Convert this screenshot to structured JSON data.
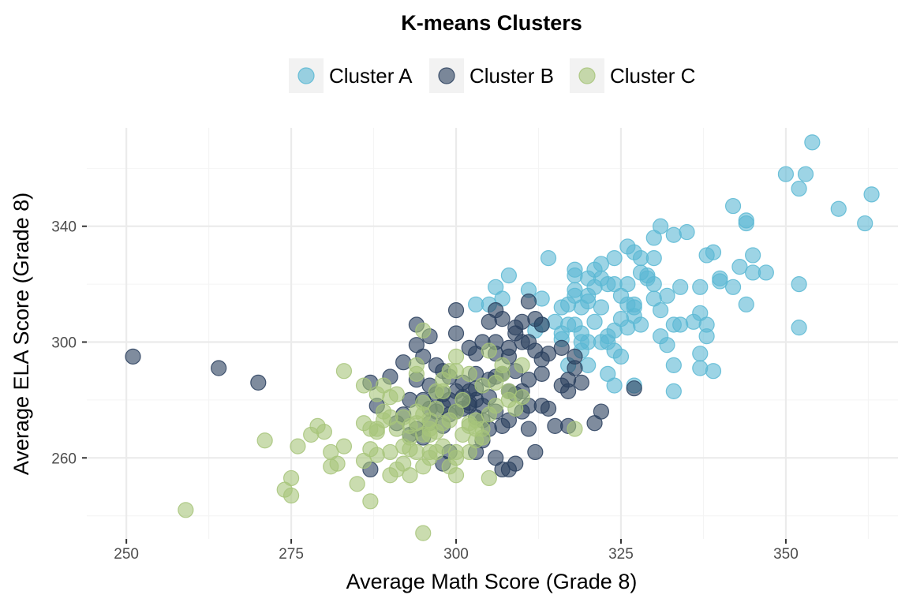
{
  "chart_data": {
    "type": "scatter",
    "title": "K-means Clusters",
    "xlabel": "Average Math Score (Grade 8)",
    "ylabel": "Average ELA Score (Grade 8)",
    "xlim": [
      244,
      367
    ],
    "ylim": [
      232,
      374
    ],
    "x_ticks": [
      250,
      275,
      300,
      325,
      350
    ],
    "y_ticks": [
      260,
      300,
      340
    ],
    "grid": true,
    "legend_position": "top",
    "series": [
      {
        "name": "Cluster A",
        "color": "#5bb8d4",
        "points": [
          [
            354,
            369
          ],
          [
            350,
            358
          ],
          [
            353,
            358
          ],
          [
            352,
            353
          ],
          [
            363,
            351
          ],
          [
            358,
            346
          ],
          [
            362,
            341
          ],
          [
            342,
            347
          ],
          [
            344,
            342
          ],
          [
            344,
            341
          ],
          [
            331,
            340
          ],
          [
            330,
            336
          ],
          [
            333,
            337
          ],
          [
            335,
            338
          ],
          [
            326,
            333
          ],
          [
            327,
            331
          ],
          [
            328,
            329
          ],
          [
            330,
            329
          ],
          [
            324,
            329
          ],
          [
            322,
            327
          ],
          [
            338,
            330
          ],
          [
            339,
            331
          ],
          [
            345,
            330
          ],
          [
            343,
            326
          ],
          [
            345,
            324
          ],
          [
            347,
            324
          ],
          [
            340,
            322
          ],
          [
            340,
            321
          ],
          [
            342,
            319
          ],
          [
            337,
            319
          ],
          [
            334,
            319
          ],
          [
            329,
            322
          ],
          [
            330,
            320
          ],
          [
            329,
            323
          ],
          [
            328,
            324
          ],
          [
            321,
            325
          ],
          [
            322,
            322
          ],
          [
            320,
            322
          ],
          [
            318,
            325
          ],
          [
            318,
            323
          ],
          [
            324,
            320
          ],
          [
            323,
            320
          ],
          [
            314,
            329
          ],
          [
            308,
            323
          ],
          [
            306,
            319
          ],
          [
            307,
            315
          ],
          [
            311,
            318
          ],
          [
            313,
            315
          ],
          [
            303,
            313
          ],
          [
            305,
            313
          ],
          [
            318,
            318
          ],
          [
            318,
            316
          ],
          [
            320,
            316
          ],
          [
            320,
            314
          ],
          [
            316,
            312
          ],
          [
            317,
            313
          ],
          [
            319,
            312
          ],
          [
            322,
            312
          ],
          [
            325,
            316
          ],
          [
            326,
            313
          ],
          [
            327,
            313
          ],
          [
            327,
            312
          ],
          [
            330,
            315
          ],
          [
            332,
            316
          ],
          [
            331,
            311
          ],
          [
            333,
            306
          ],
          [
            334,
            306
          ],
          [
            336,
            307
          ],
          [
            337,
            310
          ],
          [
            338,
            306
          ],
          [
            338,
            302
          ],
          [
            331,
            302
          ],
          [
            332,
            299
          ],
          [
            337,
            296
          ],
          [
            337,
            291
          ],
          [
            339,
            290
          ],
          [
            333,
            292
          ],
          [
            333,
            283
          ],
          [
            327,
            285
          ],
          [
            324,
            285
          ],
          [
            323,
            289
          ],
          [
            325,
            295
          ],
          [
            324,
            297
          ],
          [
            323,
            300
          ],
          [
            322,
            300
          ],
          [
            323,
            302
          ],
          [
            324,
            304
          ],
          [
            326,
            305
          ],
          [
            328,
            306
          ],
          [
            327,
            309
          ],
          [
            325,
            308
          ],
          [
            321,
            307
          ],
          [
            318,
            306
          ],
          [
            317,
            306
          ],
          [
            315,
            307
          ],
          [
            313,
            306
          ],
          [
            312,
            304
          ],
          [
            316,
            303
          ],
          [
            319,
            303
          ],
          [
            320,
            300
          ],
          [
            319,
            297
          ],
          [
            320,
            292
          ],
          [
            317,
            292
          ],
          [
            319,
            300
          ],
          [
            316,
            301
          ],
          [
            352,
            320
          ],
          [
            352,
            305
          ],
          [
            344,
            313
          ],
          [
            321,
            319
          ],
          [
            326,
            320
          ]
        ]
      },
      {
        "name": "Cluster B",
        "color": "#2a3f5e",
        "points": [
          [
            251,
            295
          ],
          [
            264,
            291
          ],
          [
            270,
            286
          ],
          [
            287,
            286
          ],
          [
            288,
            278
          ],
          [
            290,
            288
          ],
          [
            292,
            293
          ],
          [
            294,
            287
          ],
          [
            295,
            295
          ],
          [
            294,
            299
          ],
          [
            297,
            292
          ],
          [
            298,
            290
          ],
          [
            299,
            288
          ],
          [
            302,
            298
          ],
          [
            303,
            296
          ],
          [
            304,
            300
          ],
          [
            306,
            296
          ],
          [
            306,
            300
          ],
          [
            308,
            298
          ],
          [
            308,
            295
          ],
          [
            310,
            300
          ],
          [
            311,
            300
          ],
          [
            312,
            297
          ],
          [
            313,
            294
          ],
          [
            314,
            296
          ],
          [
            316,
            298
          ],
          [
            318,
            295
          ],
          [
            318,
            291
          ],
          [
            317,
            287
          ],
          [
            319,
            286
          ],
          [
            317,
            283
          ],
          [
            316,
            285
          ],
          [
            313,
            289
          ],
          [
            311,
            287
          ],
          [
            309,
            290
          ],
          [
            307,
            289
          ],
          [
            306,
            288
          ],
          [
            305,
            287
          ],
          [
            303,
            289
          ],
          [
            302,
            283
          ],
          [
            301,
            286
          ],
          [
            300,
            283
          ],
          [
            299,
            280
          ],
          [
            298,
            278
          ],
          [
            297,
            276
          ],
          [
            296,
            277
          ],
          [
            297,
            282
          ],
          [
            296,
            285
          ],
          [
            295,
            280
          ],
          [
            293,
            280
          ],
          [
            292,
            275
          ],
          [
            291,
            272
          ],
          [
            293,
            268
          ],
          [
            294,
            270
          ],
          [
            295,
            267
          ],
          [
            296,
            272
          ],
          [
            298,
            271
          ],
          [
            299,
            275
          ],
          [
            301,
            277
          ],
          [
            302,
            278
          ],
          [
            303,
            280
          ],
          [
            305,
            281
          ],
          [
            306,
            276
          ],
          [
            304,
            273
          ],
          [
            305,
            270
          ],
          [
            307,
            271
          ],
          [
            308,
            273
          ],
          [
            310,
            276
          ],
          [
            311,
            278
          ],
          [
            311,
            270
          ],
          [
            313,
            278
          ],
          [
            314,
            277
          ],
          [
            315,
            271
          ],
          [
            317,
            271
          ],
          [
            321,
            272
          ],
          [
            322,
            276
          ],
          [
            327,
            284
          ],
          [
            296,
            302
          ],
          [
            294,
            306
          ],
          [
            300,
            311
          ],
          [
            306,
            311
          ],
          [
            307,
            308
          ],
          [
            310,
            307
          ],
          [
            311,
            314
          ],
          [
            312,
            308
          ],
          [
            313,
            306
          ],
          [
            309,
            305
          ],
          [
            309,
            303
          ],
          [
            305,
            307
          ],
          [
            300,
            303
          ],
          [
            298,
            258
          ],
          [
            303,
            262
          ],
          [
            304,
            266
          ],
          [
            306,
            260
          ],
          [
            307,
            256
          ],
          [
            308,
            256
          ],
          [
            309,
            258
          ],
          [
            312,
            262
          ],
          [
            287,
            256
          ],
          [
            299,
            262
          ],
          [
            308,
            283
          ],
          [
            310,
            283
          ],
          [
            309,
            282
          ],
          [
            304,
            278
          ],
          [
            303,
            274
          ],
          [
            302,
            279
          ],
          [
            300,
            276
          ],
          [
            298,
            282
          ],
          [
            301,
            281
          ],
          [
            303,
            284
          ]
        ]
      },
      {
        "name": "Cluster C",
        "color": "#a7c47a",
        "points": [
          [
            259,
            242
          ],
          [
            271,
            266
          ],
          [
            274,
            249
          ],
          [
            275,
            247
          ],
          [
            275,
            253
          ],
          [
            276,
            264
          ],
          [
            278,
            268
          ],
          [
            279,
            271
          ],
          [
            280,
            269
          ],
          [
            281,
            257
          ],
          [
            281,
            262
          ],
          [
            282,
            258
          ],
          [
            283,
            264
          ],
          [
            283,
            290
          ],
          [
            285,
            251
          ],
          [
            286,
            259
          ],
          [
            286,
            285
          ],
          [
            286,
            272
          ],
          [
            287,
            270
          ],
          [
            287,
            263
          ],
          [
            287,
            245
          ],
          [
            288,
            261
          ],
          [
            288,
            269
          ],
          [
            289,
            276
          ],
          [
            290,
            254
          ],
          [
            290,
            262
          ],
          [
            291,
            256
          ],
          [
            291,
            270
          ],
          [
            292,
            258
          ],
          [
            292,
            264
          ],
          [
            292,
            274
          ],
          [
            293,
            254
          ],
          [
            293,
            263
          ],
          [
            293,
            267
          ],
          [
            294,
            262
          ],
          [
            294,
            272
          ],
          [
            294,
            276
          ],
          [
            295,
            275
          ],
          [
            295,
            279
          ],
          [
            295,
            268
          ],
          [
            295,
            257
          ],
          [
            295,
            234
          ],
          [
            296,
            262
          ],
          [
            296,
            268
          ],
          [
            296,
            273
          ],
          [
            297,
            269
          ],
          [
            297,
            277
          ],
          [
            298,
            264
          ],
          [
            298,
            272
          ],
          [
            299,
            273
          ],
          [
            299,
            257
          ],
          [
            300,
            254
          ],
          [
            300,
            260
          ],
          [
            300,
            276
          ],
          [
            301,
            268
          ],
          [
            301,
            280
          ],
          [
            302,
            271
          ],
          [
            302,
            272
          ],
          [
            303,
            266
          ],
          [
            303,
            273
          ],
          [
            304,
            270
          ],
          [
            305,
            253
          ],
          [
            305,
            275
          ],
          [
            306,
            278
          ],
          [
            306,
            286
          ],
          [
            307,
            289
          ],
          [
            307,
            292
          ],
          [
            308,
            283
          ],
          [
            308,
            280
          ],
          [
            309,
            277
          ],
          [
            310,
            292
          ],
          [
            310,
            281
          ],
          [
            318,
            270
          ],
          [
            305,
            297
          ],
          [
            300,
            295
          ],
          [
            299,
            290
          ],
          [
            294,
            292
          ],
          [
            295,
            304
          ],
          [
            294,
            289
          ],
          [
            291,
            282
          ],
          [
            290,
            281
          ],
          [
            289,
            285
          ],
          [
            288,
            282
          ],
          [
            289,
            273
          ],
          [
            288,
            270
          ],
          [
            290,
            274
          ],
          [
            298,
            287
          ],
          [
            297,
            283
          ],
          [
            298,
            283
          ],
          [
            297,
            262
          ],
          [
            296,
            260
          ],
          [
            300,
            290
          ],
          [
            302,
            289
          ],
          [
            304,
            285
          ],
          [
            304,
            267
          ],
          [
            303,
            270
          ],
          [
            302,
            262
          ],
          [
            300,
            262
          ],
          [
            296,
            270
          ],
          [
            293,
            271
          ]
        ]
      }
    ]
  }
}
